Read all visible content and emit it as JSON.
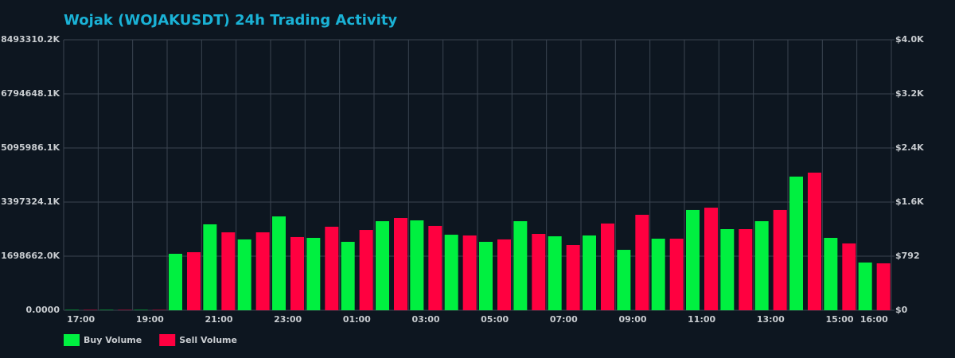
{
  "chart_data": {
    "type": "bar",
    "title": "Wojak (WOJAKUSDT) 24h Trading Activity",
    "categories": [
      "17:00",
      null,
      "19:00",
      null,
      "21:00",
      null,
      "23:00",
      null,
      "01:00",
      null,
      "03:00",
      null,
      "05:00",
      null,
      "07:00",
      null,
      "09:00",
      null,
      "11:00",
      null,
      "13:00",
      null,
      "15:00",
      "16:00"
    ],
    "series": [
      {
        "name": "Buy Volume",
        "color": "#00f040",
        "axis": "y2",
        "values": [
          5,
          5,
          5,
          827,
          1258,
          1037,
          1374,
          1060,
          1002,
          1304,
          1316,
          1106,
          1002,
          1304,
          1083,
          1095,
          885,
          1048,
          1468,
          1188,
          1304,
          1957,
          1060,
          699
        ]
      },
      {
        "name": "Sell Volume",
        "color": "#ff0040",
        "axis": "y2",
        "values": [
          5,
          5,
          5,
          850,
          1141,
          1141,
          1072,
          1223,
          1176,
          1351,
          1235,
          1095,
          1037,
          1118,
          955,
          1270,
          1398,
          1048,
          1502,
          1188,
          1468,
          2015,
          978,
          687
        ]
      }
    ],
    "ylim": [
      0,
      8493310200
    ],
    "yticks": [
      {
        "value": 0,
        "label": "0.0000"
      },
      {
        "value": 1698662000,
        "label": "1698662.0K"
      },
      {
        "value": 3397324100,
        "label": "3397324.1K"
      },
      {
        "value": 5095986100,
        "label": "5095986.1K"
      },
      {
        "value": 6794648100,
        "label": "6794648.1K"
      },
      {
        "value": 8493310200,
        "label": "8493310.2K"
      }
    ],
    "y2lim": [
      0,
      3960
    ],
    "y2ticks": [
      {
        "value": 0,
        "label": "$0"
      },
      {
        "value": 792,
        "label": "$792"
      },
      {
        "value": 1584,
        "label": "$1.6K"
      },
      {
        "value": 2376,
        "label": "$2.4K"
      },
      {
        "value": 3168,
        "label": "$3.2K"
      },
      {
        "value": 3960,
        "label": "$4.0K"
      }
    ],
    "grid": true,
    "legend": "bottom-left"
  }
}
